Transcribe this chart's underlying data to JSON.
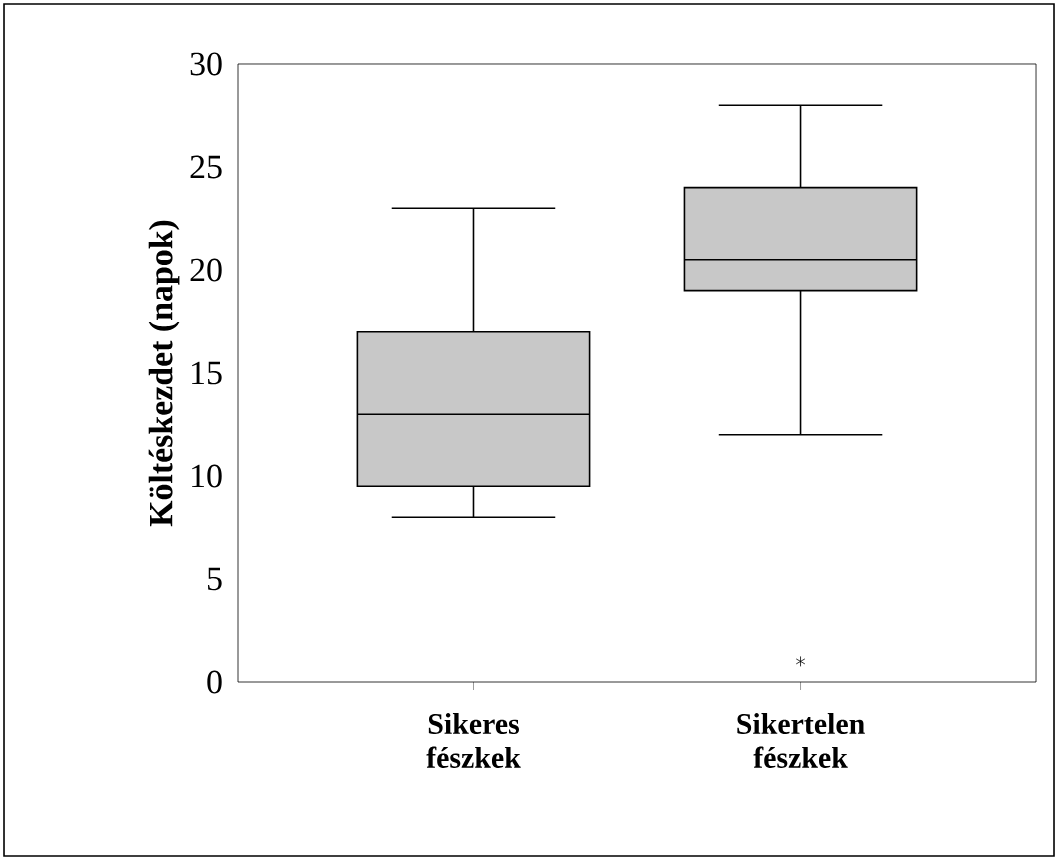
{
  "chart_data": {
    "type": "box",
    "ylabel": "Költéskezdet (napok)",
    "categories": [
      "Sikeres fészkek",
      "Sikertelen fészkek"
    ],
    "boxes": [
      {
        "low": 8,
        "q1": 9.5,
        "median": 13,
        "q3": 17,
        "high": 23
      },
      {
        "low": 12,
        "q1": 19,
        "median": 20.5,
        "q3": 24,
        "high": 28,
        "outliers": [
          1
        ]
      }
    ],
    "color": "#c8c8c8",
    "ylim": [
      0,
      30
    ],
    "yticks": [
      0,
      5,
      10,
      15,
      20,
      25,
      30
    ],
    "grid": false
  }
}
